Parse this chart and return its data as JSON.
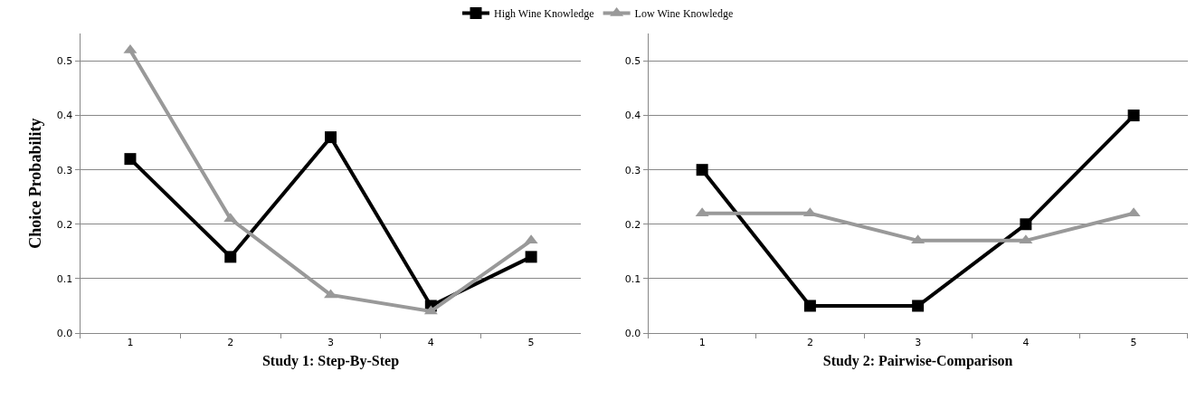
{
  "chart_data": [
    {
      "type": "line",
      "xlabel": "Study 1: Step-By-Step",
      "ylabel": "Choice Probability",
      "categories": [
        "1",
        "2",
        "3",
        "4",
        "5"
      ],
      "ylim": [
        0,
        0.55
      ],
      "yticks": [
        {
          "value": 0,
          "label": "0.0"
        },
        0.1,
        0.2,
        0.3,
        0.4,
        0.5
      ],
      "grid": "y",
      "legend": "top",
      "series": [
        {
          "name": "High Wine Knowledge",
          "color": "#000000",
          "marker": "square",
          "values": [
            0.32,
            0.14,
            0.36,
            0.05,
            0.14
          ]
        },
        {
          "name": "Low Wine Knowledge",
          "color": "#999999",
          "marker": "triangle",
          "values": [
            0.52,
            0.21,
            0.07,
            0.04,
            0.17
          ]
        }
      ]
    },
    {
      "type": "line",
      "xlabel": "Study 2: Pairwise-Comparison",
      "categories": [
        "1",
        "2",
        "3",
        "4",
        "5"
      ],
      "ylim": [
        0,
        0.55
      ],
      "yticks": [
        {
          "value": 0,
          "label": "0.0"
        },
        0.1,
        0.2,
        0.3,
        0.4,
        0.5
      ],
      "grid": "y",
      "legend": "top",
      "series": [
        {
          "name": "High Wine Knowledge",
          "color": "#000000",
          "marker": "square",
          "values": [
            0.3,
            0.05,
            0.05,
            0.2,
            0.4
          ]
        },
        {
          "name": "Low Wine Knowledge",
          "color": "#999999",
          "marker": "triangle",
          "values": [
            0.22,
            0.22,
            0.17,
            0.17,
            0.22
          ]
        }
      ]
    }
  ]
}
